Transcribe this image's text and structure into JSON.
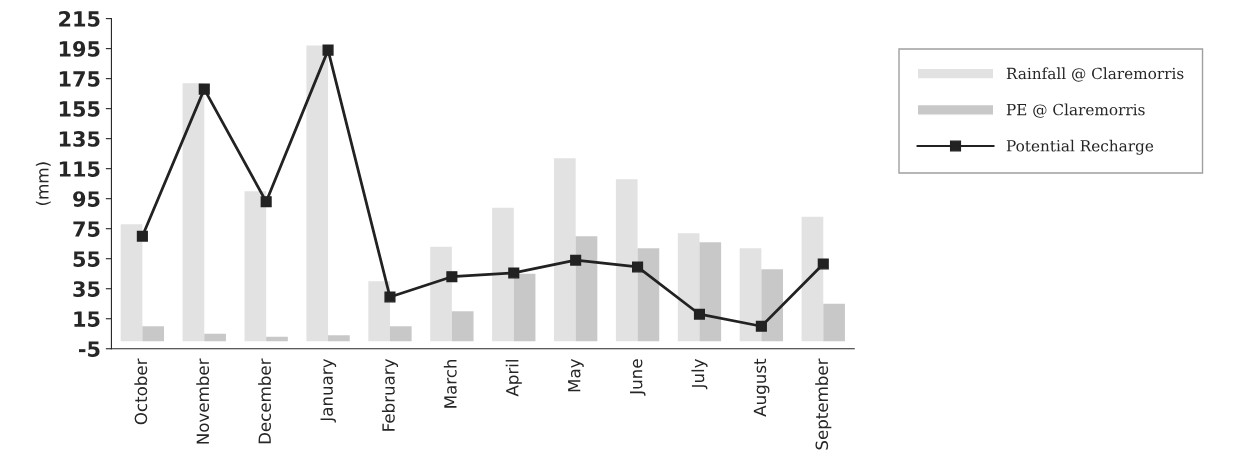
{
  "chart_data": {
    "type": "bar",
    "ylabel": "(mm)",
    "categories": [
      "October",
      "November",
      "December",
      "January",
      "February",
      "March",
      "April",
      "May",
      "June",
      "July",
      "August",
      "September"
    ],
    "series": [
      {
        "name": "Rainfall @ Claremorris",
        "color": "#e2e2e2",
        "values": [
          78,
          172,
          100,
          197,
          40,
          63,
          89,
          122,
          108,
          72,
          62,
          83
        ]
      },
      {
        "name": "PE @ Claremorris",
        "color": "#c8c8c8",
        "values": [
          10,
          5,
          3,
          4,
          10,
          20,
          45,
          70,
          62,
          66,
          48,
          25
        ]
      },
      {
        "name": "Potential Recharge",
        "type": "line",
        "color": "#222222",
        "marker": "square",
        "values": [
          70,
          168,
          93,
          194,
          29.5,
          43,
          45.5,
          54,
          49.5,
          18,
          10,
          51.5
        ]
      }
    ],
    "ylim": [
      -5,
      215
    ],
    "yticks": [
      -5,
      15,
      35,
      55,
      75,
      95,
      115,
      135,
      155,
      175,
      195,
      215
    ],
    "grid": false,
    "legend": "right"
  }
}
